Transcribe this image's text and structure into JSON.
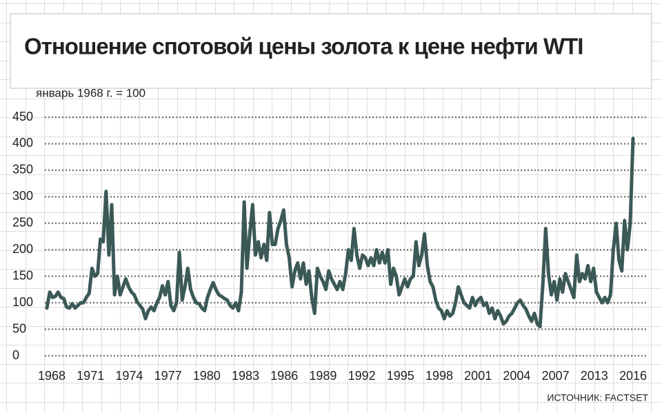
{
  "chart_data": {
    "type": "line",
    "title": "Отношение спотовой цены золота к цене нефти WTI",
    "subtitle": "январь 1968 г. = 100",
    "source": "ИСТОЧНИК: FACTSET",
    "xticks": [
      "1968",
      "1971",
      "1974",
      "1977",
      "1980",
      "1983",
      "1986",
      "1989",
      "1992",
      "1995",
      "1998",
      "2001",
      "2004",
      "2007",
      "2013",
      "2016"
    ],
    "ylim": [
      0,
      450
    ],
    "yticks": [
      0,
      50,
      100,
      150,
      200,
      250,
      300,
      350,
      400,
      450
    ],
    "grid": true,
    "series": [
      {
        "color": "#3b5957",
        "values": [
          90,
          120,
          110,
          112,
          120,
          110,
          108,
          92,
          90,
          98,
          90,
          95,
          100,
          100,
          110,
          118,
          165,
          150,
          155,
          220,
          215,
          310,
          190,
          285,
          115,
          150,
          115,
          130,
          145,
          130,
          120,
          115,
          102,
          95,
          88,
          70,
          85,
          92,
          85,
          100,
          110,
          132,
          115,
          140,
          95,
          85,
          100,
          195,
          105,
          130,
          165,
          125,
          110,
          100,
          98,
          90,
          85,
          110,
          125,
          138,
          125,
          115,
          112,
          108,
          105,
          95,
          90,
          100,
          85,
          120,
          290,
          165,
          230,
          285,
          190,
          215,
          185,
          210,
          180,
          270,
          210,
          210,
          240,
          255,
          275,
          210,
          185,
          130,
          160,
          175,
          145,
          175,
          135,
          160,
          110,
          80,
          165,
          150,
          140,
          125,
          160,
          145,
          135,
          125,
          140,
          125,
          155,
          200,
          180,
          240,
          190,
          165,
          190,
          185,
          170,
          185,
          170,
          200,
          175,
          195,
          175,
          200,
          135,
          165,
          150,
          115,
          130,
          145,
          130,
          145,
          150,
          215,
          170,
          190,
          230,
          170,
          140,
          130,
          105,
          90,
          85,
          70,
          85,
          75,
          80,
          100,
          130,
          115,
          100,
          95,
          90,
          110,
          95,
          105,
          110,
          95,
          100,
          80,
          90,
          70,
          85,
          75,
          60,
          65,
          75,
          80,
          90,
          100,
          105,
          95,
          88,
          75,
          65,
          80,
          60,
          55,
          135,
          240,
          155,
          115,
          140,
          105,
          145,
          120,
          155,
          140,
          125,
          110,
          190,
          140,
          155,
          145,
          170,
          140,
          165,
          120,
          110,
          100,
          110,
          100,
          115,
          200,
          250,
          180,
          160,
          255,
          200,
          250,
          410
        ]
      }
    ]
  }
}
